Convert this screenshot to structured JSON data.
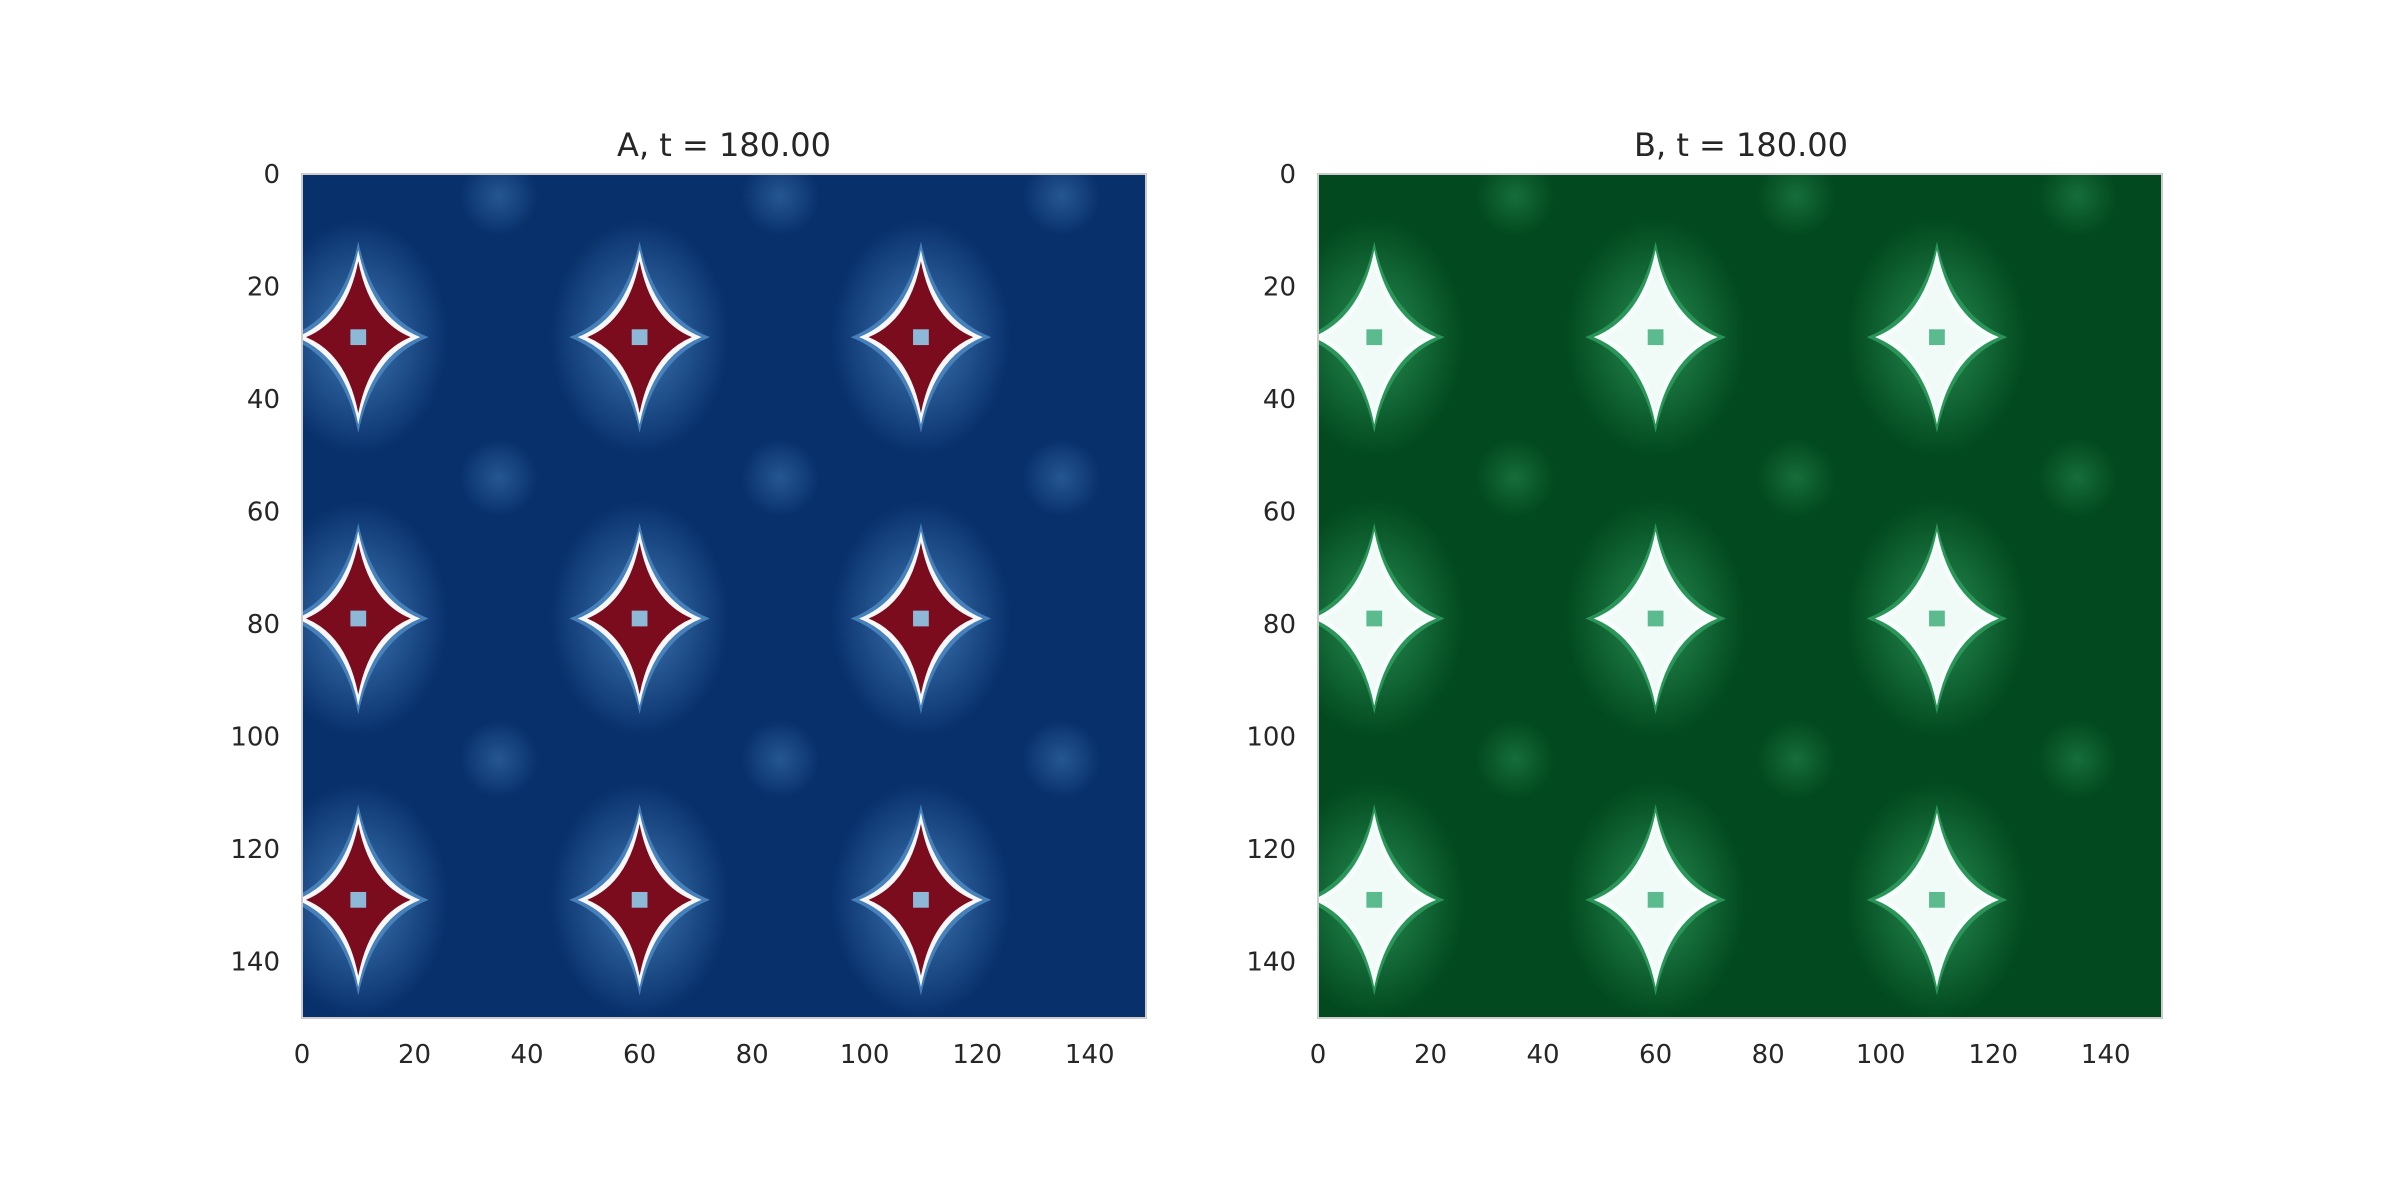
{
  "chart_data": [
    {
      "type": "heatmap",
      "title": "A, t = 180.00",
      "colormap": "RdBu_r",
      "colors": {
        "background": "#08306b",
        "halo": "#4a86c0",
        "ring": "#f7f7f7",
        "core": "#7a0c1d",
        "center": "#8db8d8",
        "frame": "#cccccc"
      },
      "grid_size": 150,
      "xlim": [
        0,
        150
      ],
      "ylim": [
        150,
        0
      ],
      "grid": false,
      "xticks": [
        "0",
        "20",
        "40",
        "60",
        "80",
        "100",
        "120",
        "140"
      ],
      "yticks": [
        "0",
        "20",
        "40",
        "60",
        "80",
        "100",
        "120",
        "140"
      ],
      "spots": [
        {
          "x": 10,
          "y": 29
        },
        {
          "x": 60,
          "y": 29
        },
        {
          "x": 110,
          "y": 29
        },
        {
          "x": 10,
          "y": 79
        },
        {
          "x": 60,
          "y": 79
        },
        {
          "x": 110,
          "y": 79
        },
        {
          "x": 10,
          "y": 129
        },
        {
          "x": 60,
          "y": 129
        },
        {
          "x": 110,
          "y": 129
        }
      ],
      "faint_spots": [
        {
          "x": 35,
          "y": 4
        },
        {
          "x": 85,
          "y": 4
        },
        {
          "x": 135,
          "y": 4
        },
        {
          "x": 35,
          "y": 54
        },
        {
          "x": 85,
          "y": 54
        },
        {
          "x": 135,
          "y": 54
        },
        {
          "x": 35,
          "y": 104
        },
        {
          "x": 85,
          "y": 104
        },
        {
          "x": 135,
          "y": 104
        }
      ]
    },
    {
      "type": "heatmap",
      "title": "B, t = 180.00",
      "colormap": "BuGn_r",
      "colors": {
        "background": "#02491f",
        "halo": "#2e9a5c",
        "ring": "#f7fcfd",
        "core": "#f0faf7",
        "center": "#5bbb8f",
        "frame": "#cccccc"
      },
      "grid_size": 150,
      "xlim": [
        0,
        150
      ],
      "ylim": [
        150,
        0
      ],
      "grid": false,
      "xticks": [
        "0",
        "20",
        "40",
        "60",
        "80",
        "100",
        "120",
        "140"
      ],
      "yticks": [
        "0",
        "20",
        "40",
        "60",
        "80",
        "100",
        "120",
        "140"
      ],
      "spots": [
        {
          "x": 10,
          "y": 29
        },
        {
          "x": 60,
          "y": 29
        },
        {
          "x": 110,
          "y": 29
        },
        {
          "x": 10,
          "y": 79
        },
        {
          "x": 60,
          "y": 79
        },
        {
          "x": 110,
          "y": 79
        },
        {
          "x": 10,
          "y": 129
        },
        {
          "x": 60,
          "y": 129
        },
        {
          "x": 110,
          "y": 129
        }
      ],
      "faint_spots": [
        {
          "x": 35,
          "y": 4
        },
        {
          "x": 85,
          "y": 4
        },
        {
          "x": 135,
          "y": 4
        },
        {
          "x": 35,
          "y": 54
        },
        {
          "x": 85,
          "y": 54
        },
        {
          "x": 135,
          "y": 54
        },
        {
          "x": 35,
          "y": 104
        },
        {
          "x": 85,
          "y": 104
        },
        {
          "x": 135,
          "y": 104
        }
      ]
    }
  ]
}
